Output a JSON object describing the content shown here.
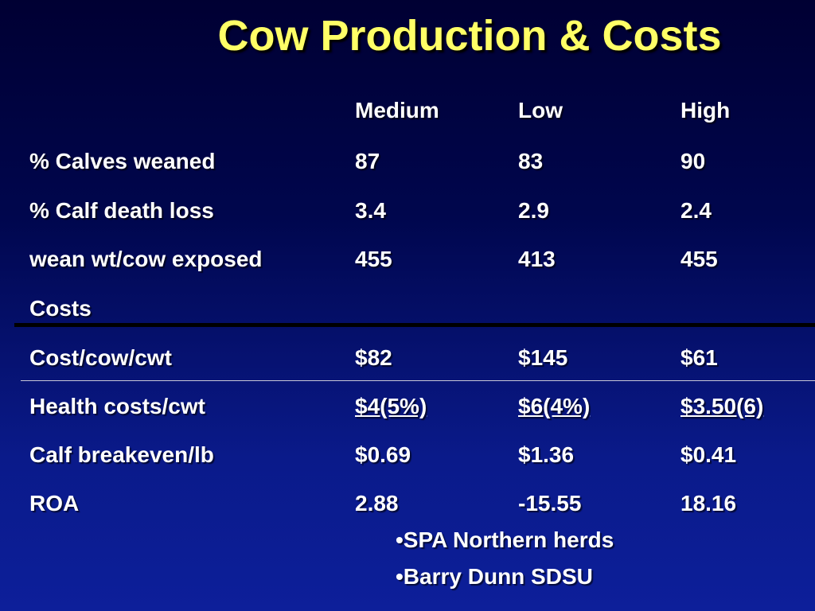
{
  "title": "Cow Production & Costs",
  "table": {
    "headers": [
      "Medium",
      "Low",
      "High"
    ],
    "rows": [
      {
        "label": "% Calves weaned",
        "values": [
          "87",
          "83",
          "90"
        ]
      },
      {
        "label": "% Calf death loss",
        "values": [
          "3.4",
          "2.9",
          "2.4"
        ]
      },
      {
        "label": "wean wt/cow exposed",
        "values": [
          "455",
          "413",
          "455"
        ]
      },
      {
        "label": "Costs",
        "values": [
          "",
          "",
          ""
        ]
      },
      {
        "label": "Cost/cow/cwt",
        "values": [
          "$82",
          "$145",
          "$61"
        ]
      },
      {
        "label": "Health costs/cwt",
        "values": [
          "$4(5%)",
          "$6(4%)",
          "$3.50(6)"
        ]
      },
      {
        "label": "Calf breakeven/lb",
        "values": [
          "$0.69",
          "$1.36",
          "$0.41"
        ]
      },
      {
        "label": "ROA",
        "values": [
          "2.88",
          "-15.55",
          "18.16"
        ]
      }
    ]
  },
  "notes": [
    "•SPA Northern herds",
    "•Barry Dunn SDSU"
  ],
  "colors": {
    "title": "#ffff66",
    "text": "#ffffff",
    "background_top": "#000033",
    "background_bottom": "#0d1f9a"
  }
}
